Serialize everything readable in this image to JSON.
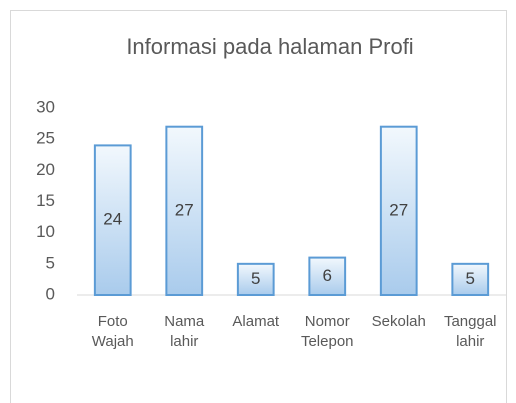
{
  "chart_data": {
    "type": "bar",
    "title": "Informasi pada halaman Profi",
    "categories": [
      [
        "Foto",
        "Wajah"
      ],
      [
        "Nama",
        "lahir"
      ],
      [
        "Alamat"
      ],
      [
        "Nomor",
        "Telepon"
      ],
      [
        "Sekolah"
      ],
      [
        "Tanggal",
        "lahir"
      ]
    ],
    "values": [
      24,
      27,
      5,
      6,
      27,
      5
    ],
    "color": "#5b9bd5",
    "ylim": [
      0,
      30
    ],
    "yticks": [
      0,
      5,
      10,
      15,
      20,
      25,
      30
    ],
    "grid": false
  }
}
